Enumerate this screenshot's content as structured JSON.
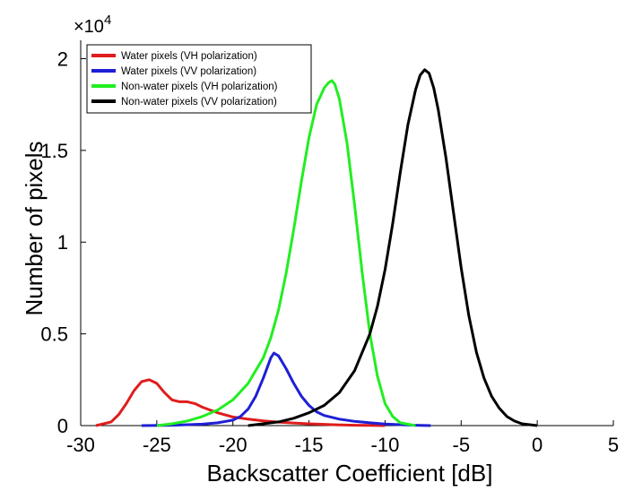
{
  "chart_data": {
    "type": "line",
    "xlabel": "Backscatter Coefficient [dB]",
    "ylabel": "Number of pixels",
    "xlim": [
      -30,
      5
    ],
    "ylim": [
      0,
      21000
    ],
    "x_ticks": [
      -30,
      -25,
      -20,
      -15,
      -10,
      -5,
      0,
      5
    ],
    "y_ticks": [
      0,
      5000,
      10000,
      15000,
      20000
    ],
    "y_tick_labels": [
      "0",
      "0.5",
      "1",
      "1.5",
      "2"
    ],
    "x_tick_labels": [
      "-30",
      "-25",
      "-20",
      "-15",
      "-10",
      "-5",
      "0",
      "5"
    ],
    "y_exponent_label": {
      "base": "×10",
      "exp": "4"
    },
    "grid": false,
    "legend_position": "top-left",
    "series": [
      {
        "name": "Water pixels (VH polarization)",
        "color": "#e01c1c",
        "x": [
          -29,
          -28,
          -27.5,
          -27,
          -26.5,
          -26,
          -25.5,
          -25,
          -24.5,
          -24,
          -23.5,
          -23,
          -22.5,
          -22,
          -21.5,
          -21,
          -20.5,
          -20,
          -19,
          -18,
          -17,
          -16,
          -15,
          -14,
          -13,
          -12,
          -11,
          -10
        ],
        "y": [
          0,
          200,
          600,
          1200,
          1900,
          2400,
          2500,
          2300,
          1800,
          1400,
          1300,
          1300,
          1200,
          1000,
          850,
          700,
          580,
          470,
          350,
          260,
          190,
          140,
          100,
          70,
          40,
          20,
          10,
          0
        ]
      },
      {
        "name": "Water pixels (VV polarization)",
        "color": "#1f1fd6",
        "x": [
          -26,
          -24,
          -22,
          -21,
          -20,
          -19.5,
          -19,
          -18.5,
          -18,
          -17.5,
          -17.3,
          -17,
          -16.5,
          -16,
          -15.5,
          -15,
          -14.5,
          -14,
          -13,
          -12,
          -11,
          -10,
          -9,
          -8,
          -7
        ],
        "y": [
          0,
          20,
          80,
          150,
          300,
          500,
          900,
          1600,
          2600,
          3700,
          3950,
          3800,
          3100,
          2300,
          1600,
          1100,
          750,
          550,
          350,
          230,
          150,
          90,
          50,
          20,
          0
        ]
      },
      {
        "name": "Non-water pixels (VH polarization)",
        "color": "#22ee22",
        "x": [
          -25,
          -24,
          -23,
          -22,
          -21,
          -20,
          -19,
          -18,
          -17.5,
          -17,
          -16.5,
          -16,
          -15.5,
          -15,
          -14.5,
          -14,
          -13.7,
          -13.5,
          -13.3,
          -13,
          -12.5,
          -12,
          -11.5,
          -11,
          -10.5,
          -10,
          -9.5,
          -9,
          -8
        ],
        "y": [
          0,
          100,
          250,
          500,
          850,
          1400,
          2300,
          3700,
          4800,
          6300,
          8300,
          10700,
          13300,
          15700,
          17500,
          18400,
          18700,
          18800,
          18600,
          17800,
          15400,
          12000,
          8300,
          5000,
          2700,
          1200,
          500,
          150,
          0
        ]
      },
      {
        "name": "Non-water pixels (VV polarization)",
        "color": "#000000",
        "x": [
          -19,
          -17,
          -16,
          -15,
          -14,
          -13,
          -12,
          -11,
          -10.5,
          -10,
          -9.5,
          -9,
          -8.5,
          -8,
          -7.7,
          -7.4,
          -7.1,
          -6.8,
          -6.5,
          -6,
          -5.5,
          -5,
          -4.5,
          -4,
          -3.5,
          -3,
          -2.5,
          -2,
          -1.5,
          -1,
          0
        ],
        "y": [
          0,
          200,
          400,
          700,
          1100,
          1800,
          3000,
          5000,
          6500,
          8500,
          11000,
          13800,
          16400,
          18300,
          19100,
          19400,
          19200,
          18400,
          17200,
          14600,
          11600,
          8600,
          6000,
          4000,
          2600,
          1600,
          950,
          500,
          250,
          100,
          0
        ]
      }
    ]
  }
}
